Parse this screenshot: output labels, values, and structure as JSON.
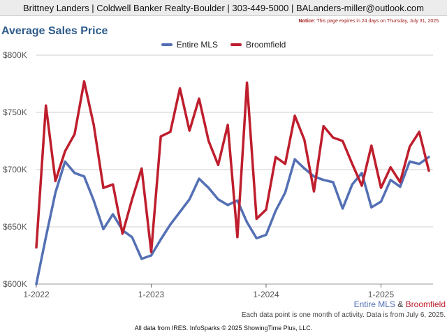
{
  "header": {
    "contact": "Brittney Landers | Coldwell Banker Realty-Boulder | 303-449-5000 | BALanders-miller@outlook.com"
  },
  "notice": {
    "label": "Notice:",
    "text": "This page expires in 24 days on Thursday, July 31, 2025."
  },
  "source_line": {
    "a": "Entire MLS",
    "amp": " & ",
    "b": "Broomfield"
  },
  "note": "Each data point is one month of activity. Data is from July 6, 2025.",
  "footer": "All data from IRES. InfoSparks © 2025 ShowingTime Plus, LLC.",
  "colors": {
    "entire_mls": "#5470b4",
    "broomfield": "#be1e2d",
    "title": "#2d5b8a"
  },
  "chart_data": {
    "type": "line",
    "title": "Average Sales Price",
    "x_tick_labels": [
      "1-2022",
      "1-2023",
      "1-2024",
      "1-2025"
    ],
    "y_tick_labels": [
      "$800K",
      "$750K",
      "$700K",
      "$650K",
      "$600K"
    ],
    "y_ticks": [
      800000,
      750000,
      700000,
      650000,
      600000
    ],
    "ylim": [
      600000,
      800000
    ],
    "x": [
      "2022-01",
      "2022-02",
      "2022-03",
      "2022-04",
      "2022-05",
      "2022-06",
      "2022-07",
      "2022-08",
      "2022-09",
      "2022-10",
      "2022-11",
      "2022-12",
      "2023-01",
      "2023-02",
      "2023-03",
      "2023-04",
      "2023-05",
      "2023-06",
      "2023-07",
      "2023-08",
      "2023-09",
      "2023-10",
      "2023-11",
      "2023-12",
      "2024-01",
      "2024-02",
      "2024-03",
      "2024-04",
      "2024-05",
      "2024-06",
      "2024-07",
      "2024-08",
      "2024-09",
      "2024-10",
      "2024-11",
      "2024-12",
      "2025-01",
      "2025-02",
      "2025-03",
      "2025-04",
      "2025-05",
      "2025-06"
    ],
    "grid": true,
    "legend": "top-center",
    "series": [
      {
        "name": "Entire MLS",
        "color": "#5470b4",
        "values": [
          600000,
          641000,
          680000,
          707000,
          697000,
          694000,
          673000,
          648000,
          661000,
          647000,
          641000,
          622000,
          625000,
          639000,
          652000,
          663000,
          674000,
          692000,
          684000,
          674000,
          669000,
          673000,
          654000,
          640000,
          643000,
          664000,
          680000,
          709000,
          701000,
          694000,
          691000,
          689000,
          666000,
          687000,
          697000,
          667000,
          672000,
          691000,
          685000,
          707000,
          705000,
          711000
        ]
      },
      {
        "name": "Broomfield",
        "color": "#be1e2d",
        "values": [
          632000,
          756000,
          690000,
          716000,
          731000,
          777000,
          739000,
          684000,
          687000,
          644000,
          674000,
          701000,
          628000,
          729000,
          733000,
          771000,
          734000,
          762000,
          725000,
          704000,
          739000,
          641000,
          776000,
          657000,
          665000,
          711000,
          705000,
          747000,
          726000,
          681000,
          738000,
          728000,
          725000,
          705000,
          686000,
          721000,
          684000,
          702000,
          689000,
          720000,
          733000,
          699000
        ]
      }
    ]
  }
}
